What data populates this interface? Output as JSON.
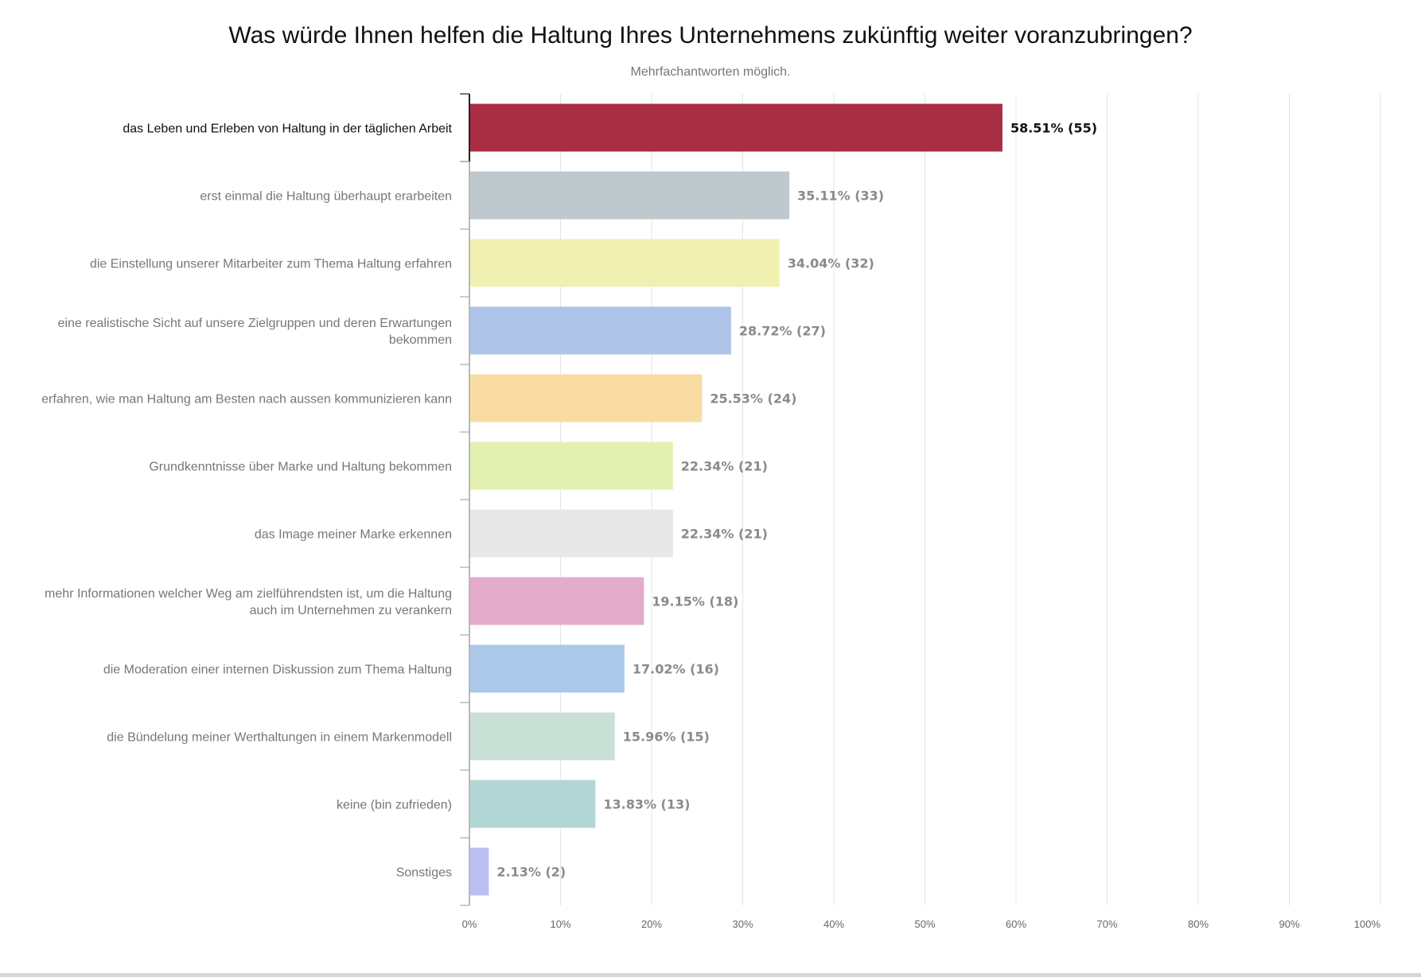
{
  "chart_data": {
    "type": "bar",
    "orientation": "horizontal",
    "title": "Was würde Ihnen helfen die Haltung Ihres Unternehmens zukünftig weiter voranzubringen?",
    "subtitle": "Mehrfachantworten möglich.",
    "xlim": [
      0,
      100
    ],
    "grid": true,
    "ticks": [
      "0%",
      "10%",
      "20%",
      "30%",
      "40%",
      "50%",
      "60%",
      "70%",
      "80%",
      "90%",
      "100%"
    ],
    "categories": [
      [
        "das Leben und Erleben von Haltung in der täglichen Arbeit"
      ],
      [
        "erst einmal die Haltung überhaupt erarbeiten"
      ],
      [
        "die Einstellung unserer Mitarbeiter zum Thema Haltung erfahren"
      ],
      [
        "eine realistische Sicht auf unsere Zielgruppen und deren Erwartungen",
        "bekommen"
      ],
      [
        "erfahren, wie man Haltung am Besten nach aussen kommunizieren kann"
      ],
      [
        "Grundkenntnisse über Marke und Haltung bekommen"
      ],
      [
        "das Image meiner Marke erkennen"
      ],
      [
        "mehr Informationen welcher Weg am zielführendsten ist, um die Haltung",
        "auch im Unternehmen zu verankern"
      ],
      [
        "die Moderation einer internen Diskussion zum Thema Haltung"
      ],
      [
        "die Bündelung meiner Werthaltungen in einem Markenmodell"
      ],
      [
        "keine (bin zufrieden)"
      ],
      [
        "Sonstiges"
      ]
    ],
    "values": [
      58.51,
      35.11,
      34.04,
      28.72,
      25.53,
      22.34,
      22.34,
      19.15,
      17.02,
      15.96,
      13.83,
      2.13
    ],
    "value_labels": [
      "58.51% (55)",
      "35.11% (33)",
      "34.04% (32)",
      "28.72% (27)",
      "25.53% (24)",
      "22.34% (21)",
      "22.34% (21)",
      "19.15% (18)",
      "17.02% (16)",
      "15.96% (15)",
      "13.83% (13)",
      "2.13% (2)"
    ],
    "colors": [
      "#a82e43",
      "#bfc9cd",
      "#f0f0b0",
      "#adc4e8",
      "#f8dca1",
      "#e2f0b1",
      "#e8e8e8",
      "#e4abca",
      "#abc7ea",
      "#c9e0d7",
      "#b2d6d5",
      "#bcbef2"
    ],
    "highlighted_index": 0
  }
}
